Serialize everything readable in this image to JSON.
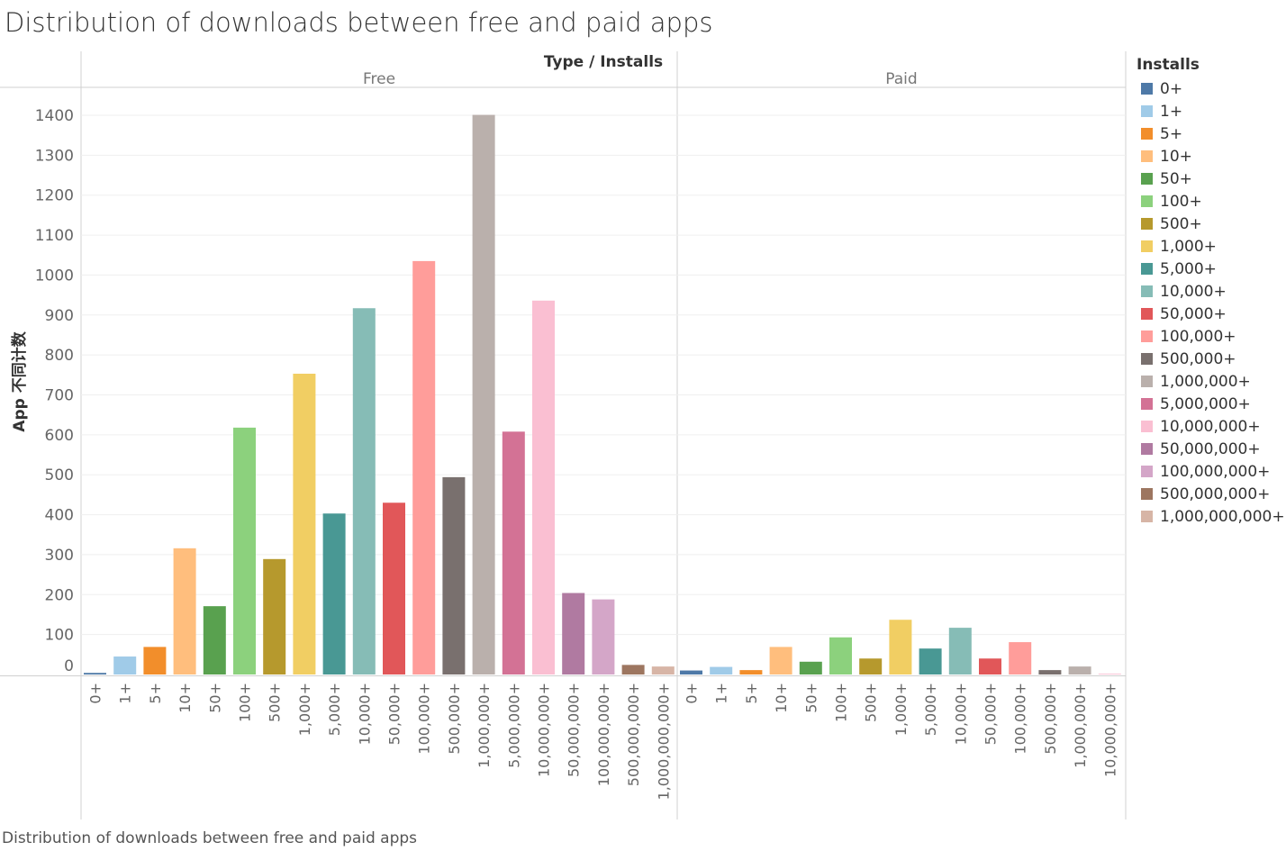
{
  "title": "Distribution of downloads between free and paid apps",
  "caption": "Distribution of downloads between free and paid apps",
  "header_title": "Type / Installs",
  "legend": {
    "title": "Installs",
    "items": [
      {
        "label": "0+",
        "color": "#4e79a7"
      },
      {
        "label": "1+",
        "color": "#a0cbe8"
      },
      {
        "label": "5+",
        "color": "#f28e2b"
      },
      {
        "label": "10+",
        "color": "#ffbe7d"
      },
      {
        "label": "50+",
        "color": "#59a14f"
      },
      {
        "label": "100+",
        "color": "#8cd17d"
      },
      {
        "label": "500+",
        "color": "#b6992d"
      },
      {
        "label": "1,000+",
        "color": "#f1ce63"
      },
      {
        "label": "5,000+",
        "color": "#499894"
      },
      {
        "label": "10,000+",
        "color": "#86bcb6"
      },
      {
        "label": "50,000+",
        "color": "#e15759"
      },
      {
        "label": "100,000+",
        "color": "#ff9d9a"
      },
      {
        "label": "500,000+",
        "color": "#79706e"
      },
      {
        "label": "1,000,000+",
        "color": "#bab0ac"
      },
      {
        "label": "5,000,000+",
        "color": "#d37295"
      },
      {
        "label": "10,000,000+",
        "color": "#fabfd2"
      },
      {
        "label": "50,000,000+",
        "color": "#b07aa1"
      },
      {
        "label": "100,000,000+",
        "color": "#d4a6c8"
      },
      {
        "label": "500,000,000+",
        "color": "#9d7660"
      },
      {
        "label": "1,000,000,000+",
        "color": "#d7b5a6"
      }
    ]
  },
  "chart_data": {
    "type": "bar",
    "title": "Distribution of downloads between free and paid apps",
    "ylabel": "App 不同计数",
    "ylim": [
      0,
      1400
    ],
    "yticks": [
      0,
      100,
      200,
      300,
      400,
      500,
      600,
      700,
      800,
      900,
      1000,
      1100,
      1200,
      1300,
      1400
    ],
    "grid": true,
    "legend_position": "right",
    "panes": [
      {
        "name": "Free",
        "categories": [
          "0+",
          "1+",
          "5+",
          "10+",
          "50+",
          "100+",
          "500+",
          "1,000+",
          "5,000+",
          "10,000+",
          "50,000+",
          "100,000+",
          "500,000+",
          "1,000,000+",
          "5,000,000+",
          "10,000,000+",
          "50,000,000+",
          "100,000,000+",
          "500,000,000+",
          "1,000,000,000+"
        ],
        "values": [
          4,
          45,
          69,
          316,
          171,
          618,
          289,
          753,
          403,
          917,
          430,
          1035,
          494,
          1401,
          608,
          936,
          204,
          188,
          24,
          20
        ]
      },
      {
        "name": "Paid",
        "categories": [
          "0+",
          "1+",
          "5+",
          "10+",
          "50+",
          "100+",
          "500+",
          "1,000+",
          "5,000+",
          "10,000+",
          "50,000+",
          "100,000+",
          "500,000+",
          "1,000,000+",
          "10,000,000+"
        ],
        "values": [
          10,
          19,
          11,
          69,
          32,
          93,
          40,
          137,
          65,
          117,
          40,
          81,
          11,
          20,
          2
        ]
      }
    ]
  }
}
